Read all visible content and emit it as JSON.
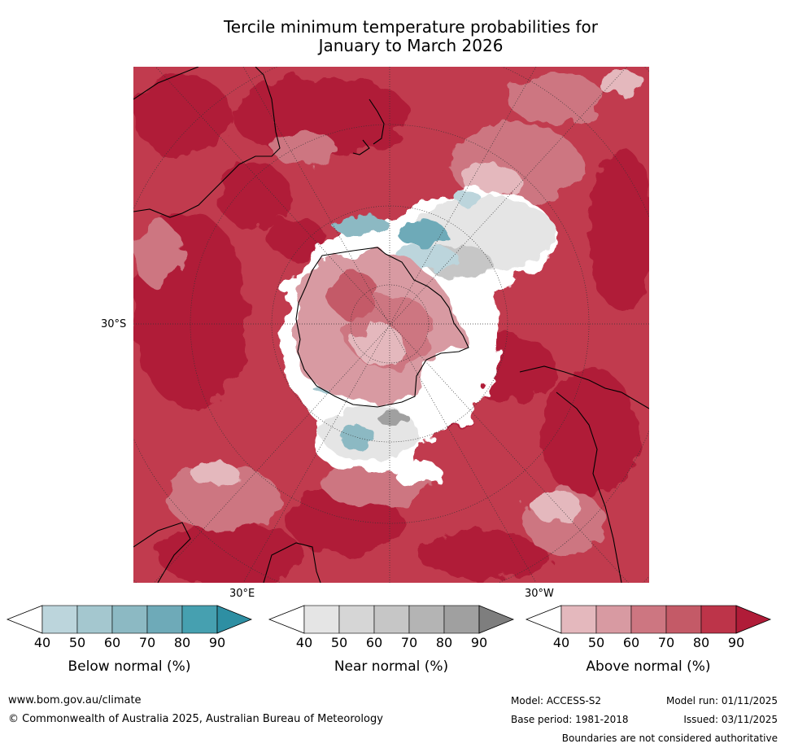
{
  "title_line1": "Tercile minimum temperature probabilities for",
  "title_line2": "January to March 2026",
  "labels": {
    "lat_30s": "30°S",
    "lon_30e": "30°E",
    "lon_30w": "30°W"
  },
  "colorbars": [
    {
      "name": "Below normal (%)",
      "ticks": [
        "40",
        "50",
        "60",
        "70",
        "80",
        "90"
      ],
      "colors": [
        "#ffffff",
        "#bcd5dc",
        "#a4c7cf",
        "#8cb9c3",
        "#6eaab8",
        "#46a0b0",
        "#2e8fa3"
      ]
    },
    {
      "name": "Near normal (%)",
      "ticks": [
        "40",
        "50",
        "60",
        "70",
        "80",
        "90"
      ],
      "colors": [
        "#ffffff",
        "#e5e5e5",
        "#d6d6d6",
        "#c6c6c6",
        "#b4b4b4",
        "#a0a0a0",
        "#7e7e7e"
      ]
    },
    {
      "name": "Above normal (%)",
      "ticks": [
        "40",
        "50",
        "60",
        "70",
        "80",
        "90"
      ],
      "colors": [
        "#ffffff",
        "#e4b8bd",
        "#d89aa2",
        "#cd7681",
        "#c45a67",
        "#bd3449",
        "#b01c38"
      ]
    }
  ],
  "footer": {
    "website": "www.bom.gov.au/climate",
    "copyright": "© Commonwealth of Australia 2025, Australian Bureau of Meteorology",
    "model": "Model: ACCESS-S2",
    "base_period": "Base period: 1981-2018",
    "model_run": "Model run: 01/11/2025",
    "issued": "Issued: 03/11/2025",
    "disclaimer": "Boundaries are not considered authoritative"
  }
}
